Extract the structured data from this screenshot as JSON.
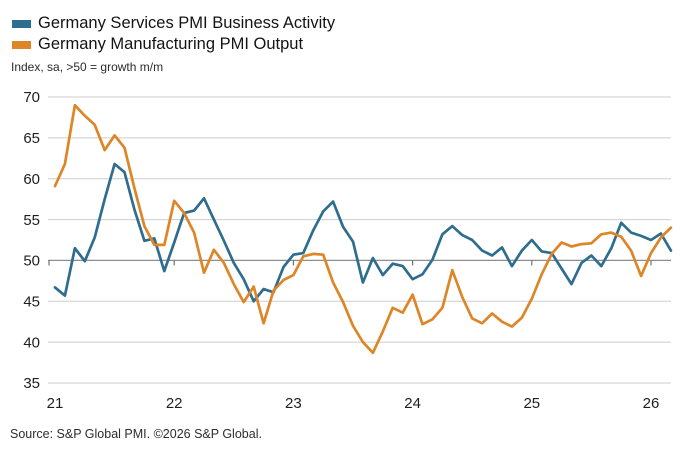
{
  "subtitle": "Index, sa, >50 = growth m/m",
  "footer": "Source: S&P Global PMI. ©2026 S&P Global.",
  "colors": {
    "services": "#2e6d8e",
    "manufacturing": "#dd8527",
    "grid": "#cdcdcd",
    "reference_line": "#8e8e8e",
    "tick": "#6f6f6f",
    "axis_text": "#1f1f1f"
  },
  "chart_data": {
    "type": "line",
    "title": "Germany Services PMI Business Activity vs Germany Manufacturing PMI Output",
    "frequency": "monthly",
    "x_start": "2021-01",
    "x_end": "2026-03",
    "xlabel": "",
    "ylabel": "Index, sa, >50 = growth m/m",
    "ylim": [
      35,
      70
    ],
    "ytick_step": 5,
    "yticks": [
      70,
      65,
      60,
      55,
      50,
      45,
      40,
      35
    ],
    "xtick_labels": [
      "21",
      "22",
      "23",
      "24",
      "25",
      "26"
    ],
    "reference_line": 50,
    "grid": true,
    "legend_position": "top-left",
    "series": [
      {
        "name": "Germany Services PMI Business Activity",
        "color": "#2e6d8e",
        "values": [
          46.7,
          45.7,
          51.5,
          49.9,
          52.8,
          57.5,
          61.8,
          60.8,
          56.2,
          52.4,
          52.7,
          48.7,
          52.2,
          55.8,
          56.1,
          57.6,
          55.0,
          52.4,
          49.7,
          47.7,
          45.0,
          46.5,
          46.1,
          49.2,
          50.7,
          50.9,
          53.7,
          56.0,
          57.2,
          54.1,
          52.3,
          47.3,
          50.3,
          48.2,
          49.6,
          49.3,
          47.7,
          48.3,
          50.1,
          53.2,
          54.2,
          53.1,
          52.5,
          51.2,
          50.6,
          51.6,
          49.3,
          51.2,
          52.5,
          51.1,
          50.9,
          49.0,
          47.1,
          49.7,
          50.6,
          49.3,
          51.5,
          54.6,
          53.4,
          53.0,
          52.5,
          53.3,
          51.2
        ]
      },
      {
        "name": "Germany Manufacturing PMI Output",
        "color": "#dd8527",
        "values": [
          59.1,
          61.8,
          69.0,
          67.7,
          66.6,
          63.5,
          65.3,
          63.8,
          58.8,
          54.2,
          51.9,
          51.9,
          57.3,
          55.8,
          53.4,
          48.5,
          51.3,
          49.7,
          47.1,
          44.9,
          46.8,
          42.3,
          46.3,
          47.6,
          48.2,
          50.5,
          50.8,
          50.7,
          47.3,
          44.9,
          42.0,
          40.0,
          38.7,
          41.3,
          44.2,
          43.6,
          45.8,
          42.2,
          42.8,
          44.2,
          48.8,
          45.5,
          42.9,
          42.3,
          43.5,
          42.5,
          41.9,
          43.0,
          45.3,
          48.3,
          50.8,
          52.2,
          51.7,
          52.0,
          52.1,
          53.2,
          53.4,
          52.9,
          51.2,
          48.1,
          50.9,
          52.8,
          54.0
        ]
      }
    ]
  }
}
